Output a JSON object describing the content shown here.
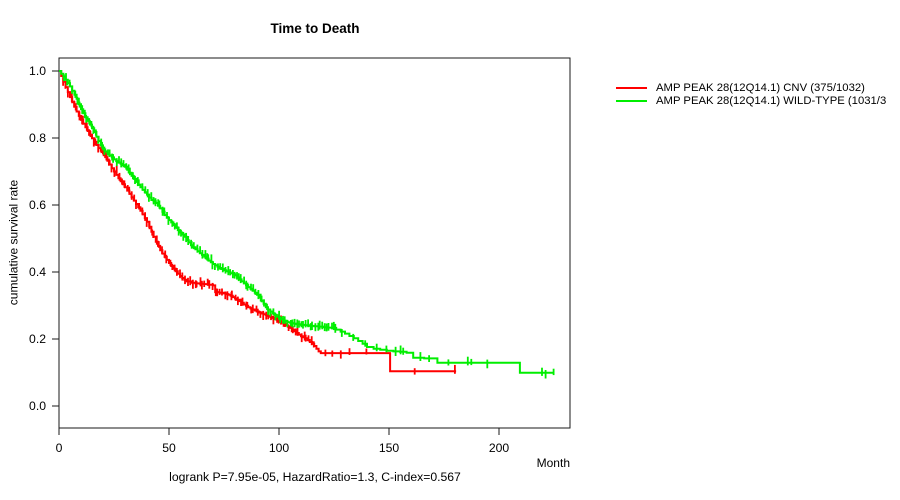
{
  "title": "Time to Death",
  "caption": "logrank P=7.95e-05, HazardRatio=1.3, C-index=0.567",
  "axes": {
    "x_tick_labels": [
      "0",
      "50",
      "100",
      "150",
      "200"
    ],
    "x_tick_values": [
      0,
      50,
      100,
      150,
      200
    ],
    "y_tick_labels": [
      "0.0",
      "0.2",
      "0.4",
      "0.6",
      "0.8",
      "1.0"
    ],
    "y_tick_values": [
      0,
      0.2,
      0.4,
      0.6,
      0.8,
      1.0
    ]
  },
  "chart_data": {
    "type": "line",
    "subtype": "kaplan-meier-step",
    "title": "Time to Death",
    "xlabel": "Month",
    "ylabel": "cumulative survival rate",
    "xlim": [
      0,
      232
    ],
    "ylim": [
      0,
      1.0
    ],
    "grid": false,
    "legend_position": "top-right-outside",
    "caption": "logrank P=7.95e-05, HazardRatio=1.3, C-index=0.567",
    "series": [
      {
        "name": "AMP PEAK 28(12Q14.1) CNV (375/1032)",
        "color": "#ff0000",
        "points": [
          [
            0,
            1.0
          ],
          [
            1,
            0.985
          ],
          [
            2,
            0.968
          ],
          [
            3,
            0.952
          ],
          [
            4,
            0.937
          ],
          [
            5,
            0.922
          ],
          [
            6,
            0.907
          ],
          [
            7,
            0.893
          ],
          [
            8,
            0.879
          ],
          [
            9,
            0.866
          ],
          [
            10,
            0.854
          ],
          [
            11,
            0.843
          ],
          [
            12,
            0.832
          ],
          [
            13,
            0.821
          ],
          [
            14,
            0.81
          ],
          [
            15,
            0.799
          ],
          [
            16,
            0.789
          ],
          [
            17,
            0.779
          ],
          [
            18,
            0.77
          ],
          [
            19,
            0.762
          ],
          [
            20,
            0.754
          ],
          [
            21,
            0.743
          ],
          [
            22,
            0.732
          ],
          [
            23,
            0.721
          ],
          [
            24,
            0.71
          ],
          [
            25,
            0.7
          ],
          [
            26,
            0.69
          ],
          [
            27,
            0.68
          ],
          [
            28,
            0.671
          ],
          [
            29,
            0.662
          ],
          [
            30,
            0.653
          ],
          [
            31,
            0.643
          ],
          [
            32,
            0.633
          ],
          [
            33,
            0.623
          ],
          [
            34,
            0.613
          ],
          [
            35,
            0.603
          ],
          [
            36,
            0.593
          ],
          [
            37,
            0.583
          ],
          [
            38,
            0.572
          ],
          [
            39,
            0.561
          ],
          [
            40,
            0.55
          ],
          [
            41,
            0.535
          ],
          [
            42,
            0.52
          ],
          [
            43,
            0.505
          ],
          [
            44,
            0.49
          ],
          [
            45,
            0.478
          ],
          [
            46,
            0.465
          ],
          [
            47,
            0.455
          ],
          [
            48,
            0.445
          ],
          [
            49,
            0.436
          ],
          [
            50,
            0.427
          ],
          [
            51,
            0.418
          ],
          [
            52,
            0.41
          ],
          [
            53,
            0.402
          ],
          [
            54,
            0.395
          ],
          [
            55,
            0.388
          ],
          [
            56,
            0.382
          ],
          [
            57,
            0.377
          ],
          [
            58,
            0.372
          ],
          [
            60,
            0.368
          ],
          [
            62,
            0.366
          ],
          [
            64,
            0.365
          ],
          [
            66,
            0.364
          ],
          [
            68,
            0.362
          ],
          [
            70,
            0.36
          ],
          [
            71,
            0.34
          ],
          [
            73,
            0.338
          ],
          [
            75,
            0.336
          ],
          [
            76,
            0.334
          ],
          [
            77,
            0.332
          ],
          [
            78,
            0.329
          ],
          [
            79,
            0.325
          ],
          [
            80,
            0.321
          ],
          [
            81,
            0.317
          ],
          [
            82,
            0.313
          ],
          [
            83,
            0.308
          ],
          [
            84,
            0.303
          ],
          [
            85,
            0.299
          ],
          [
            86,
            0.295
          ],
          [
            87,
            0.291
          ],
          [
            88,
            0.288
          ],
          [
            89,
            0.285
          ],
          [
            90,
            0.282
          ],
          [
            91,
            0.279
          ],
          [
            92,
            0.276
          ],
          [
            93,
            0.274
          ],
          [
            94,
            0.272
          ],
          [
            95,
            0.269
          ],
          [
            96,
            0.266
          ],
          [
            97,
            0.263
          ],
          [
            98,
            0.26
          ],
          [
            99,
            0.257
          ],
          [
            100,
            0.253
          ],
          [
            101,
            0.249
          ],
          [
            102,
            0.245
          ],
          [
            103,
            0.241
          ],
          [
            104,
            0.237
          ],
          [
            105,
            0.233
          ],
          [
            106,
            0.228
          ],
          [
            107,
            0.223
          ],
          [
            108,
            0.218
          ],
          [
            109,
            0.213
          ],
          [
            110,
            0.208
          ],
          [
            111,
            0.205
          ],
          [
            112,
            0.202
          ],
          [
            113,
            0.197
          ],
          [
            114,
            0.191
          ],
          [
            115,
            0.186
          ],
          [
            116,
            0.179
          ],
          [
            117,
            0.171
          ],
          [
            118,
            0.163
          ],
          [
            119,
            0.158
          ],
          [
            150.5,
            0.104
          ],
          [
            180.5,
            0.104
          ]
        ],
        "censor_dense_range": {
          "from": 2,
          "to": 117,
          "step": 1.15
        },
        "censor_marks": [
          121,
          124.5,
          128,
          132,
          140,
          162,
          180
        ]
      },
      {
        "name": "AMP PEAK 28(12Q14.1) WILD-TYPE (1031/3",
        "color": "#00ee00",
        "points": [
          [
            0,
            1.0
          ],
          [
            1,
            0.992
          ],
          [
            2,
            0.984
          ],
          [
            3,
            0.974
          ],
          [
            4,
            0.964
          ],
          [
            5,
            0.954
          ],
          [
            6,
            0.941
          ],
          [
            7,
            0.929
          ],
          [
            8,
            0.917
          ],
          [
            9,
            0.901
          ],
          [
            10,
            0.886
          ],
          [
            11,
            0.874
          ],
          [
            12,
            0.862
          ],
          [
            13,
            0.851
          ],
          [
            14,
            0.84
          ],
          [
            15,
            0.829
          ],
          [
            16,
            0.818
          ],
          [
            17,
            0.804
          ],
          [
            18,
            0.791
          ],
          [
            19,
            0.778
          ],
          [
            20,
            0.766
          ],
          [
            21,
            0.76
          ],
          [
            22,
            0.754
          ],
          [
            23,
            0.748
          ],
          [
            24,
            0.742
          ],
          [
            25,
            0.736
          ],
          [
            26,
            0.731
          ],
          [
            27,
            0.727
          ],
          [
            28,
            0.723
          ],
          [
            29,
            0.719
          ],
          [
            30,
            0.714
          ],
          [
            31,
            0.705
          ],
          [
            32,
            0.696
          ],
          [
            33,
            0.687
          ],
          [
            34,
            0.678
          ],
          [
            35,
            0.669
          ],
          [
            36,
            0.661
          ],
          [
            37,
            0.653
          ],
          [
            38,
            0.645
          ],
          [
            39,
            0.638
          ],
          [
            40,
            0.631
          ],
          [
            41,
            0.622
          ],
          [
            42,
            0.615
          ],
          [
            43,
            0.611
          ],
          [
            44,
            0.606
          ],
          [
            45,
            0.598
          ],
          [
            46,
            0.59
          ],
          [
            47,
            0.58
          ],
          [
            48,
            0.57
          ],
          [
            49,
            0.562
          ],
          [
            50,
            0.555
          ],
          [
            51,
            0.548
          ],
          [
            52,
            0.54
          ],
          [
            53,
            0.533
          ],
          [
            54,
            0.525
          ],
          [
            55,
            0.518
          ],
          [
            56,
            0.512
          ],
          [
            57,
            0.505
          ],
          [
            58,
            0.495
          ],
          [
            59,
            0.488
          ],
          [
            60,
            0.48
          ],
          [
            61,
            0.474
          ],
          [
            62,
            0.468
          ],
          [
            63,
            0.462
          ],
          [
            64,
            0.456
          ],
          [
            65,
            0.451
          ],
          [
            66,
            0.446
          ],
          [
            67,
            0.44
          ],
          [
            68,
            0.434
          ],
          [
            69,
            0.429
          ],
          [
            70,
            0.424
          ],
          [
            71,
            0.42
          ],
          [
            72,
            0.416
          ],
          [
            73,
            0.412
          ],
          [
            74,
            0.409
          ],
          [
            75,
            0.405
          ],
          [
            76,
            0.402
          ],
          [
            77,
            0.399
          ],
          [
            78,
            0.396
          ],
          [
            79,
            0.393
          ],
          [
            80,
            0.39
          ],
          [
            81,
            0.384
          ],
          [
            82,
            0.378
          ],
          [
            83,
            0.372
          ],
          [
            84,
            0.366
          ],
          [
            85,
            0.361
          ],
          [
            86,
            0.355
          ],
          [
            87,
            0.35
          ],
          [
            88,
            0.344
          ],
          [
            89,
            0.338
          ],
          [
            90,
            0.332
          ],
          [
            91,
            0.324
          ],
          [
            92,
            0.315
          ],
          [
            93,
            0.305
          ],
          [
            94,
            0.295
          ],
          [
            95,
            0.288
          ],
          [
            96,
            0.282
          ],
          [
            97,
            0.277
          ],
          [
            98,
            0.272
          ],
          [
            99,
            0.267
          ],
          [
            100,
            0.263
          ],
          [
            101,
            0.259
          ],
          [
            102,
            0.255
          ],
          [
            103,
            0.252
          ],
          [
            104,
            0.25
          ],
          [
            105,
            0.249
          ],
          [
            106,
            0.247
          ],
          [
            107,
            0.246
          ],
          [
            108,
            0.244
          ],
          [
            110,
            0.242
          ],
          [
            112,
            0.241
          ],
          [
            114,
            0.239
          ],
          [
            116,
            0.238
          ],
          [
            118,
            0.237
          ],
          [
            120,
            0.235
          ],
          [
            122,
            0.234
          ],
          [
            124,
            0.233
          ],
          [
            126,
            0.228
          ],
          [
            128,
            0.222
          ],
          [
            130,
            0.216
          ],
          [
            132,
            0.209
          ],
          [
            134,
            0.202
          ],
          [
            136,
            0.194
          ],
          [
            138,
            0.186
          ],
          [
            140,
            0.176
          ],
          [
            143,
            0.171
          ],
          [
            146,
            0.168
          ],
          [
            149,
            0.165
          ],
          [
            152,
            0.163
          ],
          [
            155,
            0.162
          ],
          [
            158,
            0.159
          ],
          [
            161,
            0.144
          ],
          [
            166,
            0.142
          ],
          [
            172,
            0.129
          ],
          [
            209.5,
            0.099
          ],
          [
            225,
            0.099
          ]
        ],
        "censor_dense_range": {
          "from": 2,
          "to": 126,
          "step": 1.05
        },
        "censor_marks": [
          128.5,
          134,
          139,
          144.5,
          149,
          152.7,
          155,
          156.5,
          164,
          168,
          176.8,
          185.5,
          187.7,
          194.5,
          219.5,
          221.5,
          224.5
        ]
      }
    ]
  }
}
